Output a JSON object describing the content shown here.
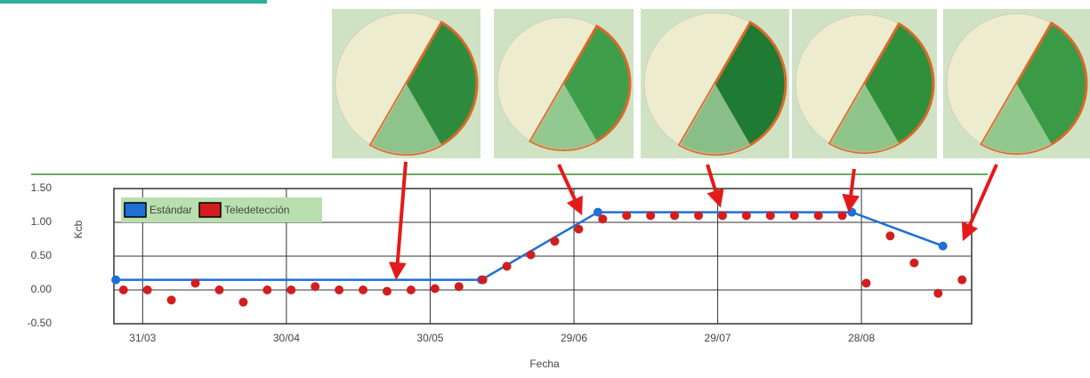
{
  "chart_data": {
    "type": "line",
    "y_label": "Kcb",
    "x_label": "Fecha",
    "xlim": [
      84,
      263
    ],
    "xticks": [
      {
        "value": 90,
        "label": "31/03"
      },
      {
        "value": 120,
        "label": "30/04"
      },
      {
        "value": 150,
        "label": "30/05"
      },
      {
        "value": 180,
        "label": "29/06"
      },
      {
        "value": 210,
        "label": "29/07"
      },
      {
        "value": 240,
        "label": "28/08"
      }
    ],
    "ylim": [
      -0.5,
      1.5
    ],
    "yticks": [
      {
        "value": -0.5,
        "label": "-0.50"
      },
      {
        "value": 0,
        "label": "0.00"
      },
      {
        "value": 0.5,
        "label": "0.50"
      },
      {
        "value": 1,
        "label": "1.00"
      },
      {
        "value": 1.5,
        "label": "1.50"
      }
    ],
    "grid": true,
    "legend": "top-left",
    "series": [
      {
        "name": "Estándar",
        "color": "#1f6fd6",
        "style": "line",
        "x": [
          84.4,
          160.7,
          185,
          238,
          257
        ],
        "values": [
          0.15,
          0.15,
          1.15,
          1.15,
          0.65
        ]
      },
      {
        "name": "Teledetección",
        "color": "#d21e1e",
        "style": "points",
        "x": [
          86,
          91,
          96,
          101,
          106,
          111,
          116,
          121,
          126,
          131,
          136,
          141,
          146,
          151,
          156,
          161,
          166,
          171,
          176,
          181,
          186,
          191,
          196,
          201,
          206,
          211,
          216,
          221,
          226,
          231,
          236,
          241,
          246,
          251,
          256,
          261
        ],
        "values": [
          0.0,
          0.0,
          -0.15,
          0.1,
          0.0,
          -0.18,
          0.0,
          0.0,
          0.05,
          0.0,
          0.0,
          -0.02,
          0.0,
          0.02,
          0.05,
          0.15,
          0.35,
          0.52,
          0.72,
          0.9,
          1.05,
          1.1,
          1.1,
          1.1,
          1.1,
          1.1,
          1.1,
          1.1,
          1.1,
          1.1,
          1.1,
          0.1,
          0.8,
          0.4,
          -0.05,
          0.15
        ]
      }
    ]
  }
}
